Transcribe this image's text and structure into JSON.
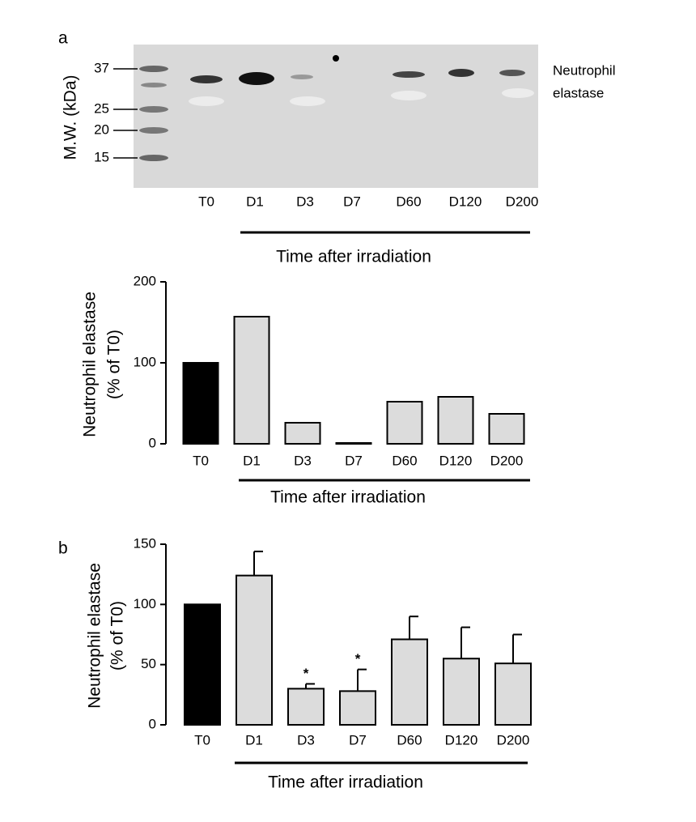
{
  "panel_labels": [
    "a",
    "b"
  ],
  "gel": {
    "y_label": "M.W. (kDa)",
    "markers": [
      37,
      25,
      20,
      15
    ],
    "lanes": [
      "T0",
      "D1",
      "D3",
      "D7",
      "D60",
      "D120",
      "D200"
    ],
    "band_label_lines": [
      "Neutrophil",
      "elastase"
    ],
    "x_label": "Time after irradiation"
  },
  "chart_data": [
    {
      "type": "bar",
      "ylabel_lines": [
        "Neutrophil elastase",
        "(% of T0)"
      ],
      "xlabel": "Time after irradiation",
      "categories": [
        "T0",
        "D1",
        "D3",
        "D7",
        "D60",
        "D120",
        "D200"
      ],
      "values": [
        100,
        157,
        26,
        1,
        52,
        58,
        37
      ],
      "colors": [
        "#000000",
        "#dcdcdc",
        "#dcdcdc",
        "#dcdcdc",
        "#dcdcdc",
        "#dcdcdc",
        "#dcdcdc"
      ],
      "ylim": [
        0,
        200
      ],
      "yticks": [
        0,
        100,
        200
      ]
    },
    {
      "type": "bar",
      "ylabel_lines": [
        "Neutrophil elastase",
        "(% of T0)"
      ],
      "xlabel": "Time after irradiation",
      "categories": [
        "T0",
        "D1",
        "D3",
        "D7",
        "D60",
        "D120",
        "D200"
      ],
      "values": [
        100,
        124,
        30,
        28,
        71,
        55,
        51
      ],
      "errors": [
        0,
        20,
        4,
        18,
        19,
        26,
        24
      ],
      "significance": [
        null,
        null,
        "*",
        "*",
        null,
        null,
        null
      ],
      "colors": [
        "#000000",
        "#dcdcdc",
        "#dcdcdc",
        "#dcdcdc",
        "#dcdcdc",
        "#dcdcdc",
        "#dcdcdc"
      ],
      "ylim": [
        0,
        150
      ],
      "yticks": [
        0,
        50,
        100,
        150
      ]
    }
  ]
}
